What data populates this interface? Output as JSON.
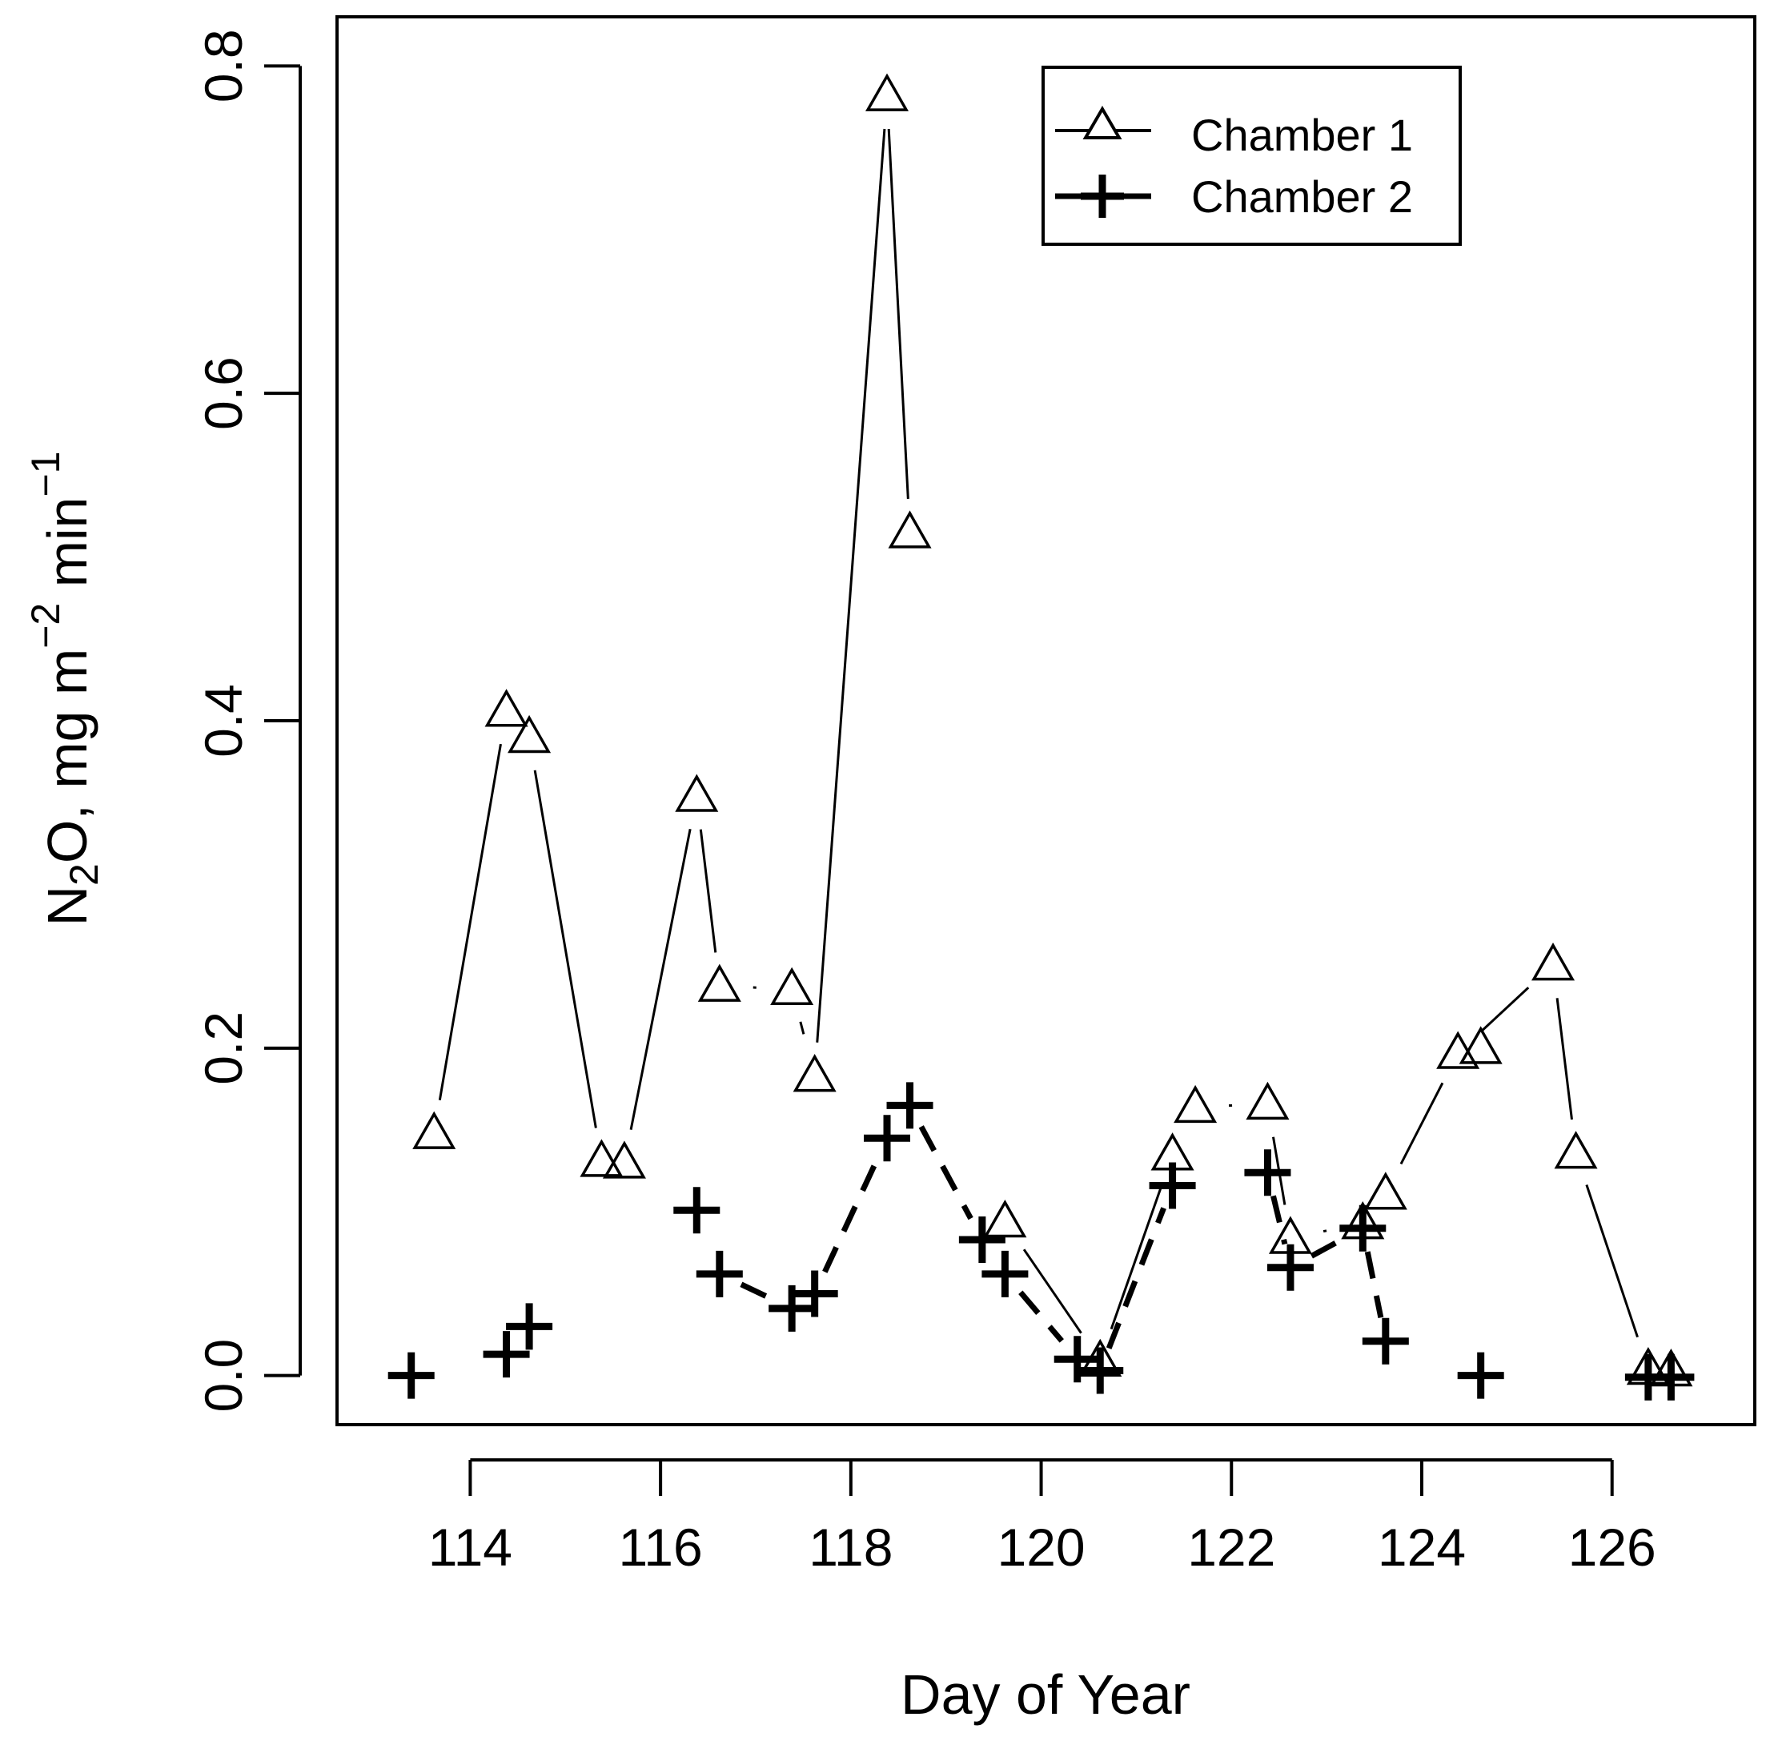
{
  "chart_data": {
    "type": "line",
    "title": "",
    "xlabel": "Day of Year",
    "ylabel": {
      "prefix": "N",
      "subscript": "2",
      "main": "O, mg m",
      "sup1": "−2",
      "mid": " min",
      "sup2": "−1"
    },
    "xlim": [
      112.6,
      127.5
    ],
    "ylim": [
      -0.03,
      0.83
    ],
    "xticks": [
      {
        "value": 114,
        "label": "114"
      },
      {
        "value": 116,
        "label": "116"
      },
      {
        "value": 118,
        "label": "118"
      },
      {
        "value": 120,
        "label": "120"
      },
      {
        "value": 122,
        "label": "122"
      },
      {
        "value": 124,
        "label": "124"
      },
      {
        "value": 126,
        "label": "126"
      }
    ],
    "yticks": [
      {
        "value": 0.0,
        "label": "0.0"
      },
      {
        "value": 0.2,
        "label": "0.2"
      },
      {
        "value": 0.4,
        "label": "0.4"
      },
      {
        "value": 0.6,
        "label": "0.6"
      },
      {
        "value": 0.8,
        "label": "0.8"
      }
    ],
    "legend_position": "top-right",
    "series": [
      {
        "name": "Chamber 1",
        "marker": "triangle",
        "line": "solid",
        "points": [
          {
            "x": 113.62,
            "y": 0.148
          },
          {
            "x": 114.38,
            "y": 0.406
          },
          {
            "x": 114.62,
            "y": 0.39
          },
          {
            "x": 115.38,
            "y": 0.131
          },
          {
            "x": 115.62,
            "y": 0.13
          },
          {
            "x": 116.38,
            "y": 0.354
          },
          {
            "x": 116.62,
            "y": 0.238
          },
          {
            "x": 117.38,
            "y": 0.236
          },
          {
            "x": 117.62,
            "y": 0.183
          },
          {
            "x": 118.38,
            "y": 0.782
          },
          {
            "x": 118.62,
            "y": 0.515
          },
          {
            "x": 119.62,
            "y": 0.094
          },
          {
            "x": 120.62,
            "y": 0.009
          },
          {
            "x": 121.38,
            "y": 0.135
          },
          {
            "x": 121.62,
            "y": 0.164
          },
          {
            "x": 122.38,
            "y": 0.166
          },
          {
            "x": 122.62,
            "y": 0.084
          },
          {
            "x": 123.38,
            "y": 0.093
          },
          {
            "x": 123.62,
            "y": 0.111
          },
          {
            "x": 124.38,
            "y": 0.197
          },
          {
            "x": 124.62,
            "y": 0.2
          },
          {
            "x": 125.38,
            "y": 0.251
          },
          {
            "x": 125.62,
            "y": 0.136
          },
          {
            "x": 126.38,
            "y": 0.004
          },
          {
            "x": 126.62,
            "y": 0.003
          }
        ],
        "line_segments": [
          [
            0,
            1
          ],
          [
            2,
            3
          ],
          [
            4,
            5
          ],
          [
            5,
            6
          ],
          [
            8,
            9
          ],
          [
            9,
            10
          ],
          [
            11,
            12
          ],
          [
            12,
            13
          ],
          [
            15,
            16
          ],
          [
            18,
            19
          ],
          [
            19,
            21
          ],
          [
            21,
            22
          ],
          [
            22,
            23
          ]
        ],
        "dotted_segments": [
          [
            6,
            7
          ],
          [
            14,
            15
          ],
          [
            16,
            17
          ]
        ],
        "dashed_segments": [
          [
            7,
            8
          ]
        ]
      },
      {
        "name": "Chamber 2",
        "marker": "plus",
        "line": "dashed",
        "points": [
          {
            "x": 113.38,
            "y": 0.0
          },
          {
            "x": 114.38,
            "y": 0.013
          },
          {
            "x": 114.62,
            "y": 0.03
          },
          {
            "x": 116.38,
            "y": 0.101
          },
          {
            "x": 116.62,
            "y": 0.062
          },
          {
            "x": 117.38,
            "y": 0.041
          },
          {
            "x": 117.62,
            "y": 0.05
          },
          {
            "x": 118.38,
            "y": 0.145
          },
          {
            "x": 118.62,
            "y": 0.165
          },
          {
            "x": 119.38,
            "y": 0.083
          },
          {
            "x": 119.62,
            "y": 0.062
          },
          {
            "x": 120.38,
            "y": 0.01
          },
          {
            "x": 120.62,
            "y": 0.003
          },
          {
            "x": 121.38,
            "y": 0.116
          },
          {
            "x": 122.38,
            "y": 0.124
          },
          {
            "x": 122.62,
            "y": 0.066
          },
          {
            "x": 123.38,
            "y": 0.09
          },
          {
            "x": 123.62,
            "y": 0.021
          },
          {
            "x": 124.62,
            "y": 0.0
          },
          {
            "x": 126.38,
            "y": -0.001
          },
          {
            "x": 126.62,
            "y": -0.001
          }
        ],
        "line_segments": [
          [
            4,
            5
          ],
          [
            6,
            7
          ],
          [
            7,
            8
          ],
          [
            8,
            9
          ],
          [
            9,
            10
          ],
          [
            10,
            11
          ],
          [
            11,
            12
          ],
          [
            12,
            13
          ],
          [
            14,
            15
          ],
          [
            15,
            16
          ],
          [
            16,
            17
          ],
          [
            19,
            20
          ]
        ]
      }
    ]
  }
}
